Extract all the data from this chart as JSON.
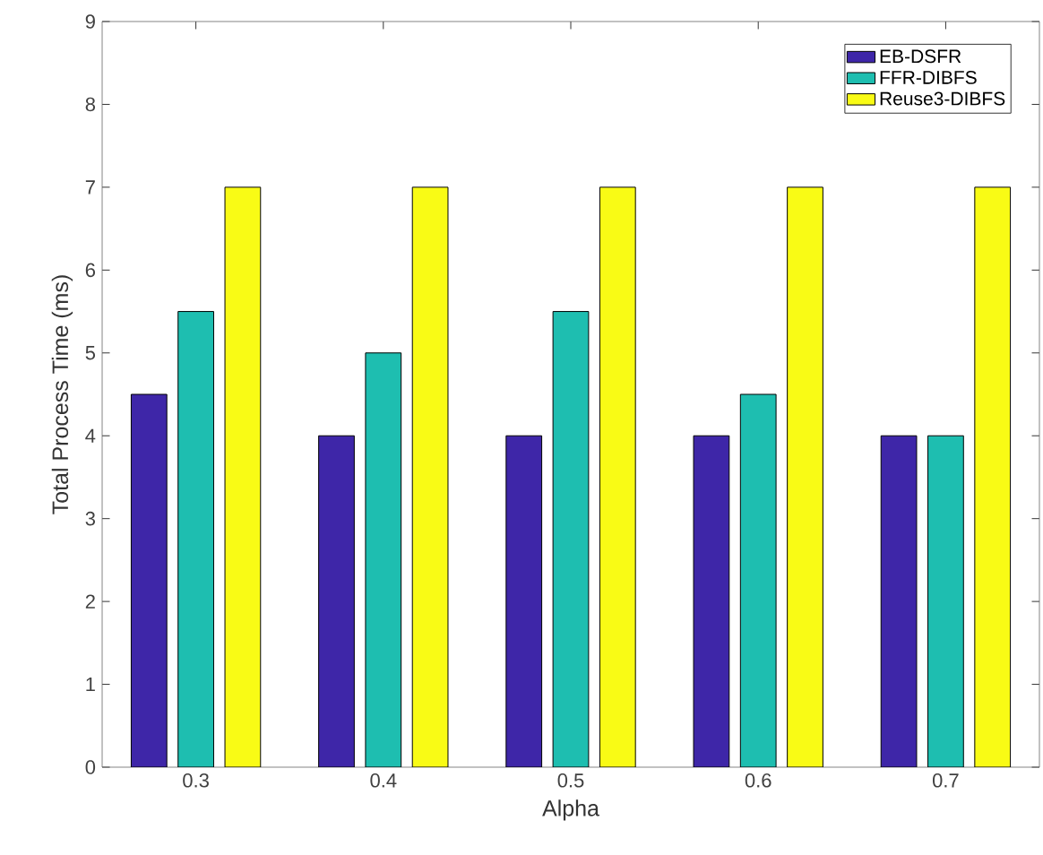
{
  "chart_data": {
    "type": "bar",
    "xlabel": "Alpha",
    "ylabel": "Total Process Time (ms)",
    "categories": [
      "0.3",
      "0.4",
      "0.5",
      "0.6",
      "0.7"
    ],
    "series": [
      {
        "name": "EB-DSFR",
        "color": "#3e26a8",
        "values": [
          4.5,
          4,
          4,
          4,
          4
        ]
      },
      {
        "name": "FFR-DIBFS",
        "color": "#1ebeb0",
        "values": [
          5.5,
          5,
          5.5,
          4.5,
          4
        ]
      },
      {
        "name": "Reuse3-DIBFS",
        "color": "#f9fb15",
        "values": [
          7,
          7,
          7,
          7,
          7
        ]
      }
    ],
    "ylim": [
      0,
      9
    ],
    "yticks": [
      0,
      1,
      2,
      3,
      4,
      5,
      6,
      7,
      8,
      9
    ],
    "grid": false,
    "legend": "top right"
  }
}
